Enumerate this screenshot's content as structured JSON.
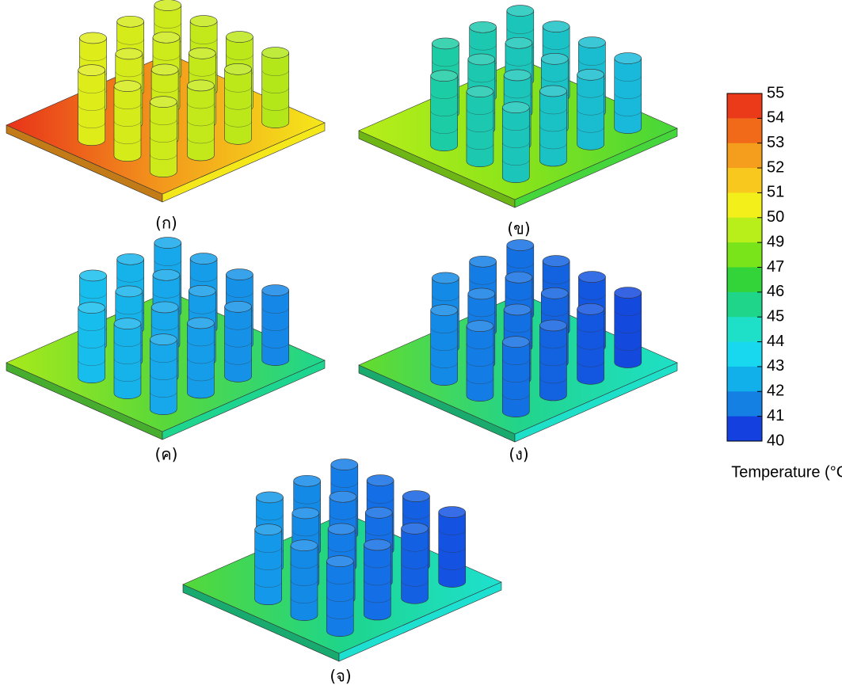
{
  "panels": [
    {
      "label": "(ก)"
    },
    {
      "label": "(ข)"
    },
    {
      "label": "(ค)"
    },
    {
      "label": "(ง)"
    },
    {
      "label": "(จ)"
    }
  ],
  "colorbar": {
    "title": "Temperature (°C)",
    "ticks": [
      55,
      54,
      53,
      52,
      51,
      50,
      49,
      47,
      46,
      45,
      44,
      43,
      42,
      41,
      40
    ],
    "colors": [
      "#ea3a1a",
      "#f06a1a",
      "#f59d1c",
      "#f9c81e",
      "#f2ef1a",
      "#b8ee1a",
      "#7ae41a",
      "#33d43a",
      "#1ed58a",
      "#1ee0c8",
      "#18d8f0",
      "#12b0ea",
      "#1480e4",
      "#1440e0"
    ]
  }
}
